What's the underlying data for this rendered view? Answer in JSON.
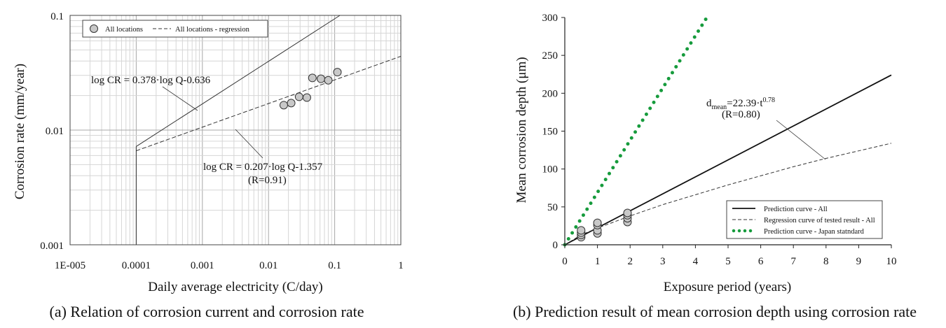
{
  "chart_data": [
    {
      "type": "scatter",
      "xlabel": "Daily average electricity (C/day)",
      "ylabel": "Corrosion rate (mm/year)",
      "caption": "(a) Relation of corrosion current and corrosion rate",
      "x_scale": "log",
      "y_scale": "log",
      "xlim": [
        1e-05,
        1
      ],
      "ylim": [
        0.001,
        0.1
      ],
      "x_ticks": [
        "1E-005",
        "0.0001",
        "0.001",
        "0.01",
        "0.1",
        "1"
      ],
      "y_ticks": [
        "0.001",
        "0.01",
        "0.1"
      ],
      "grid": true,
      "legend_position": "top-left",
      "legend": [
        "All locations",
        "All locations - regression"
      ],
      "series": [
        {
          "name": "All locations",
          "type": "scatter",
          "x": [
            0.017,
            0.022,
            0.029,
            0.038,
            0.046,
            0.062,
            0.08,
            0.11
          ],
          "y": [
            0.0165,
            0.0172,
            0.0195,
            0.0192,
            0.0285,
            0.028,
            0.0272,
            0.032
          ]
        },
        {
          "name": "All locations - regression",
          "type": "line",
          "style": "dashed",
          "x": [
            0.0001,
            1
          ],
          "y": [
            0.0066,
            0.044
          ]
        },
        {
          "type": "line",
          "style": "solid",
          "x": [
            0.0001,
            0.12
          ],
          "y": [
            0.0072,
            0.1
          ]
        },
        {
          "type": "line",
          "style": "solid",
          "x": [
            0.0001,
            0.0001
          ],
          "y": [
            0.001,
            0.0072
          ]
        }
      ],
      "annotations": [
        {
          "text": "log CR = 0.378·log Q-0.636"
        },
        {
          "text": "log CR = 0.207·log Q-1.357"
        },
        {
          "text": "(R=0.91)"
        }
      ]
    },
    {
      "type": "line",
      "xlabel": "Exposure period (years)",
      "ylabel": "Mean corrosion depth (μm)",
      "caption": "(b) Prediction result of mean corrosion depth using corrosion rate",
      "xlim": [
        0,
        10
      ],
      "ylim": [
        0,
        300
      ],
      "x_ticks": [
        "0",
        "1",
        "2",
        "3",
        "4",
        "5",
        "6",
        "7",
        "8",
        "9",
        "10"
      ],
      "y_ticks": [
        "0",
        "50",
        "100",
        "150",
        "200",
        "250",
        "300"
      ],
      "grid": false,
      "legend_position": "bottom-right",
      "legend": [
        "Prediction curve - All",
        "Regression curve of tested result - All",
        "Prediction curve - Japan statndard"
      ],
      "series": [
        {
          "name": "Prediction curve - All",
          "style": "solid",
          "x": [
            0,
            10
          ],
          "y": [
            0,
            224
          ]
        },
        {
          "name": "Regression curve of tested result - All",
          "style": "dashed",
          "x": [
            0,
            0.5,
            1,
            2,
            3,
            4,
            5,
            6,
            7,
            8,
            9,
            10
          ],
          "y": [
            0,
            13,
            22,
            38,
            53,
            66,
            79,
            91,
            103,
            114,
            124,
            134
          ]
        },
        {
          "name": "Prediction curve - Japan statndard",
          "style": "dotted",
          "color": "#169b3c",
          "x": [
            0,
            4.35
          ],
          "y": [
            0,
            300
          ]
        },
        {
          "type": "scatter",
          "x": [
            0.5,
            0.5,
            0.5,
            0.5,
            1,
            1,
            1,
            1,
            1.92,
            1.92,
            1.92,
            1.92
          ],
          "y": [
            10,
            13,
            16,
            19,
            15,
            19,
            26,
            29,
            30,
            35,
            39,
            42
          ]
        }
      ],
      "annotations": [
        {
          "text_main": "d",
          "text_sub": "mean",
          "text_eq": "=22.39·t",
          "text_sup": "0.78"
        },
        {
          "text": "(R=0.80)"
        }
      ]
    }
  ]
}
